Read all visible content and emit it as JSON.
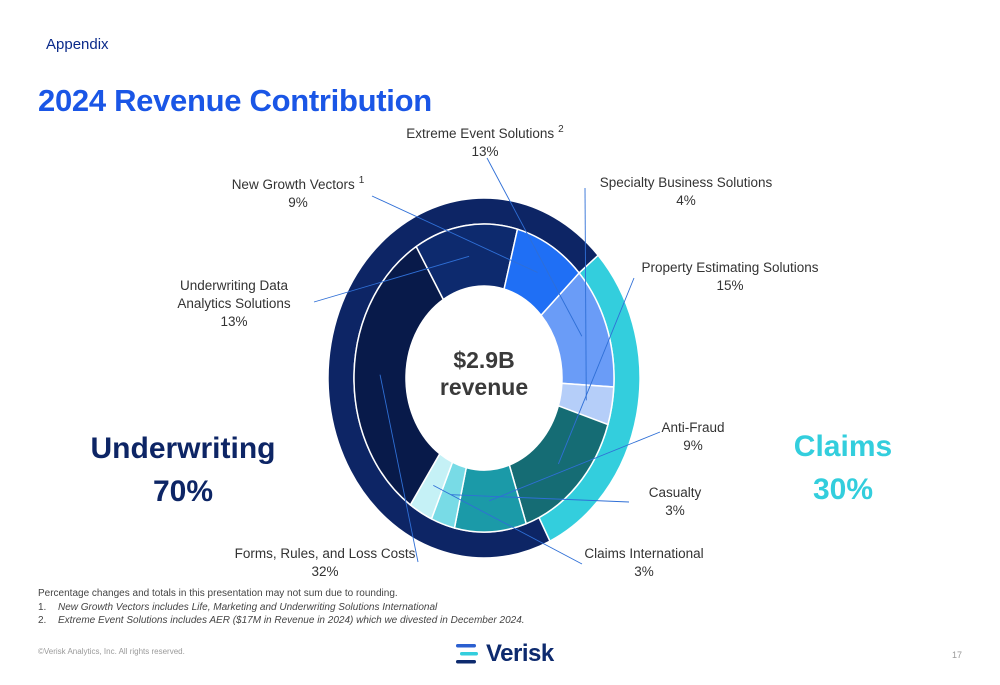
{
  "header": {
    "section": "Appendix",
    "title": "2024 Revenue Contribution"
  },
  "chart_data": {
    "type": "pie",
    "center_label_line1": "$2.9B",
    "center_label_line2": "revenue",
    "segments": [
      {
        "name": "Extreme Event Solutions",
        "superscript": "2",
        "value": 13,
        "pct_label": "13%",
        "group": "Underwriting",
        "color": "#6a9cf7"
      },
      {
        "name": "Specialty Business Solutions",
        "superscript": "",
        "value": 4,
        "pct_label": "4%",
        "group": "Underwriting",
        "color": "#b5cef9"
      },
      {
        "name": "Property Estimating Solutions",
        "superscript": "",
        "value": 15,
        "pct_label": "15%",
        "group": "Claims",
        "color": "#156c74"
      },
      {
        "name": "Anti-Fraud",
        "superscript": "",
        "value": 9,
        "pct_label": "9%",
        "group": "Claims",
        "color": "#1b9aa8"
      },
      {
        "name": "Casualty",
        "superscript": "",
        "value": 3,
        "pct_label": "3%",
        "group": "Claims",
        "color": "#78dbe6"
      },
      {
        "name": "Claims International",
        "superscript": "",
        "value": 3,
        "pct_label": "3%",
        "group": "Claims",
        "color": "#c5f1f6"
      },
      {
        "name": "Forms, Rules, and Loss Costs",
        "superscript": "",
        "value": 32,
        "pct_label": "32%",
        "group": "Underwriting",
        "color": "#081a4a"
      },
      {
        "name": "Underwriting Data Analytics Solutions",
        "superscript": "",
        "value": 13,
        "pct_label": "13%",
        "group": "Underwriting",
        "color": "#0d2a6e"
      },
      {
        "name": "New Growth Vectors",
        "superscript": "1",
        "value": 9,
        "pct_label": "9%",
        "group": "Underwriting",
        "color": "#1f6ff5"
      }
    ],
    "groups": [
      {
        "name": "Underwriting",
        "value": 70,
        "pct_label": "70%",
        "color": "#0d2565"
      },
      {
        "name": "Claims",
        "value": 30,
        "pct_label": "30%",
        "color": "#33cedd"
      }
    ]
  },
  "footnotes": {
    "intro": "Percentage changes and totals in this presentation may not sum due to rounding.",
    "items": [
      {
        "num": "1.",
        "text": "New Growth Vectors includes Life, Marketing and Underwriting Solutions International"
      },
      {
        "num": "2.",
        "text": "Extreme Event Solutions includes AER ($17M in Revenue in 2024) which we divested in December 2024."
      }
    ]
  },
  "footer": {
    "copyright": "©Verisk Analytics, Inc. All rights reserved.",
    "logo_text": "Verisk",
    "page_number": "17"
  }
}
